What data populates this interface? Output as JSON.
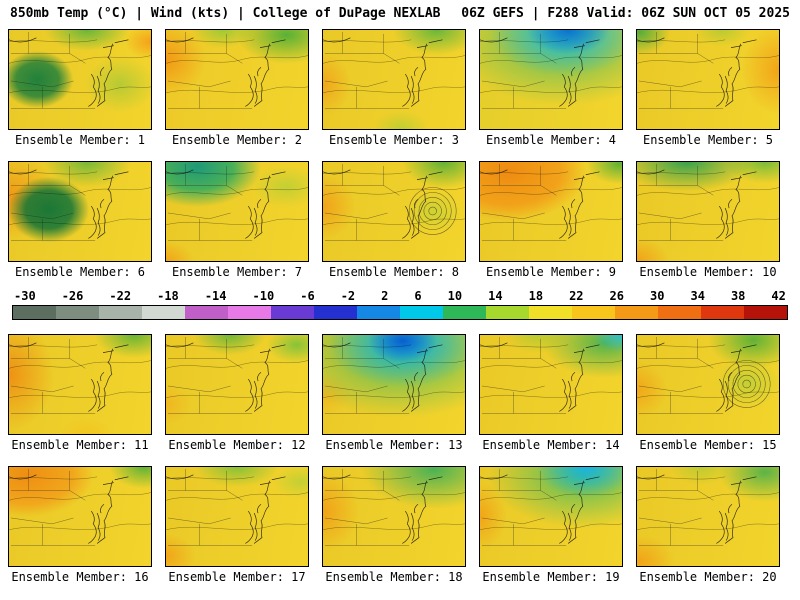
{
  "header": {
    "left": "850mb Temp (°C) | Wind (kts) | College of DuPage NEXLAB",
    "right": "06Z GEFS | F288 Valid: 06Z SUN OCT 05 2025"
  },
  "colorbar": {
    "ticks": [
      "-30",
      "-26",
      "-22",
      "-18",
      "-14",
      "-10",
      "-6",
      "-2",
      "2",
      "6",
      "10",
      "14",
      "18",
      "22",
      "26",
      "30",
      "34",
      "38",
      "42"
    ],
    "segment_colors": [
      "#5c6e60",
      "#7d8d80",
      "#a8b3aa",
      "#d2d9d3",
      "#c05fc8",
      "#e87ae8",
      "#6a3ad4",
      "#2430d0",
      "#1488e4",
      "#00c8e8",
      "#2fb857",
      "#a6d82e",
      "#f0e028",
      "#f8c51d",
      "#f59a16",
      "#ef6f12",
      "#e0380e",
      "#b5120a"
    ]
  },
  "panels": [
    {
      "label": "Ensemble Member: 1"
    },
    {
      "label": "Ensemble Member: 2"
    },
    {
      "label": "Ensemble Member: 3"
    },
    {
      "label": "Ensemble Member: 4"
    },
    {
      "label": "Ensemble Member: 5"
    },
    {
      "label": "Ensemble Member: 6"
    },
    {
      "label": "Ensemble Member: 7"
    },
    {
      "label": "Ensemble Member: 8",
      "feature": "spiral-rings"
    },
    {
      "label": "Ensemble Member: 9"
    },
    {
      "label": "Ensemble Member: 10"
    },
    {
      "label": "Ensemble Member: 11"
    },
    {
      "label": "Ensemble Member: 12"
    },
    {
      "label": "Ensemble Member: 13"
    },
    {
      "label": "Ensemble Member: 14"
    },
    {
      "label": "Ensemble Member: 15",
      "feature": "spiral-rings"
    },
    {
      "label": "Ensemble Member: 16"
    },
    {
      "label": "Ensemble Member: 17"
    },
    {
      "label": "Ensemble Member: 18"
    },
    {
      "label": "Ensemble Member: 19"
    },
    {
      "label": "Ensemble Member: 20"
    }
  ]
}
